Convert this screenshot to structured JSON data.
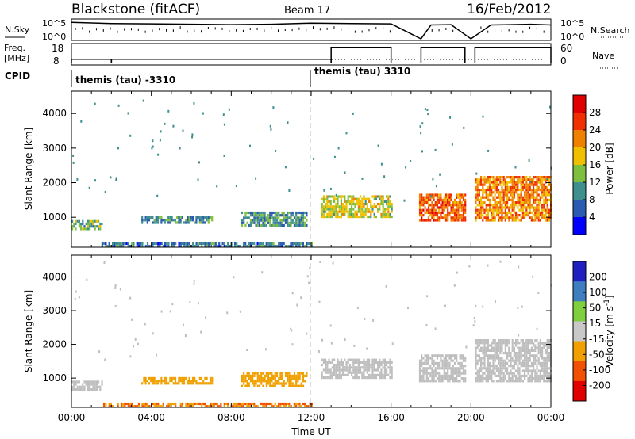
{
  "header": {
    "station": "Blackstone (fitACF)",
    "beam": "Beam 17",
    "date": "16/Feb/2012"
  },
  "top_panels": {
    "nsky_label": "N.Sky",
    "nsearch_label": "N.Search",
    "noise_tick_high": "10^5",
    "noise_tick_low": "10^0",
    "noise_tick_high_right": "10^5",
    "noise_tick_low_right": "10^0",
    "freq_label_top": "Freq.",
    "freq_label_bottom": "[MHz]",
    "freq_tick_high": "18",
    "freq_tick_low": "8",
    "nave_label": "Nave",
    "nave_tick_high": "60",
    "nave_tick_low": "0",
    "cpid_label": "CPID",
    "cpid_segments": [
      "themis (tau) -3310",
      "themis (tau) 3310"
    ]
  },
  "colors": {
    "power_scale": [
      "#0000ff",
      "#2a5bb0",
      "#3f8f8f",
      "#7fbf3f",
      "#f0c000",
      "#f08000",
      "#f03000",
      "#e00000"
    ],
    "velocity_scale": [
      "#e00000",
      "#f05000",
      "#f0a000",
      "#c8c8c8",
      "#7fcf3f",
      "#3f7fbf",
      "#2020c0"
    ],
    "ground_scatter": "#bebebe"
  },
  "chart_data": [
    {
      "type": "line",
      "title": "N.Sky / N.Search",
      "x": [
        0,
        2,
        4,
        6,
        8,
        10,
        12,
        14,
        16,
        17.5,
        18,
        19,
        20,
        21,
        22,
        23,
        24
      ],
      "series": [
        {
          "name": "N.Sky",
          "values": [
            4.5,
            4.2,
            4.1,
            4.0,
            3.9,
            4.0,
            4.3,
            4.2,
            4.1,
            0.0,
            3.8,
            3.9,
            0.0,
            3.8,
            3.9,
            4.0,
            3.8
          ]
        }
      ],
      "ylim": [
        0,
        5
      ],
      "xlim": [
        0,
        24
      ]
    },
    {
      "type": "line",
      "title": "Freq. / Nave",
      "x": [
        0,
        1.99,
        2,
        12.99,
        13,
        16,
        17.5,
        20,
        24
      ],
      "series": [
        {
          "name": "Freq.",
          "values": [
            10.3,
            10.3,
            10.3,
            10.3,
            16.8,
            16.8,
            16.8,
            16.8,
            16.8
          ]
        }
      ],
      "ylim": [
        8,
        18
      ],
      "xlim": [
        0,
        24
      ]
    },
    {
      "type": "heatmap",
      "xlabel": "",
      "ylabel": "Slant Range [km]",
      "colorbar_label": "Power [dB]",
      "colorbar_ticks": [
        4,
        8,
        12,
        16,
        20,
        24,
        28
      ],
      "xlim": [
        0,
        24
      ],
      "ylim": [
        180,
        4600
      ],
      "yticks": [
        1000,
        2000,
        3000,
        4000
      ],
      "regions": [
        {
          "t0": 0.0,
          "t1": 1.5,
          "r0": 700,
          "r1": 950,
          "value": 12
        },
        {
          "t0": 3.5,
          "t1": 7.0,
          "r0": 880,
          "r1": 1050,
          "value": 10
        },
        {
          "t0": 8.5,
          "t1": 11.8,
          "r0": 800,
          "r1": 1200,
          "value": 10
        },
        {
          "t0": 12.5,
          "t1": 16.0,
          "r0": 1050,
          "r1": 1650,
          "value": 16
        },
        {
          "t0": 17.4,
          "t1": 19.7,
          "r0": 950,
          "r1": 1750,
          "value": 24
        },
        {
          "t0": 20.2,
          "t1": 24.0,
          "r0": 950,
          "r1": 2200,
          "value": 22
        },
        {
          "t0": 1.5,
          "t1": 12.0,
          "r0": 200,
          "r1": 320,
          "value": 8
        }
      ]
    },
    {
      "type": "heatmap",
      "xlabel": "Time UT",
      "ylabel": "Slant Range [km]",
      "colorbar_label": "Velocity [m s^-1]",
      "colorbar_ticks": [
        200,
        100,
        50,
        15,
        -15,
        -50,
        -100,
        -200
      ],
      "xlim": [
        0,
        24
      ],
      "ylim": [
        180,
        4600
      ],
      "yticks": [
        1000,
        2000,
        3000,
        4000
      ],
      "xticks": [
        "00:00",
        "04:00",
        "08:00",
        "12:00",
        "16:00",
        "20:00",
        "00:00"
      ],
      "regions": [
        {
          "t0": 0.0,
          "t1": 1.5,
          "r0": 700,
          "r1": 950,
          "value": 0
        },
        {
          "t0": 3.5,
          "t1": 7.0,
          "r0": 880,
          "r1": 1050,
          "value": -60
        },
        {
          "t0": 8.5,
          "t1": 11.8,
          "r0": 800,
          "r1": 1200,
          "value": -60
        },
        {
          "t0": 12.5,
          "t1": 16.0,
          "r0": 1050,
          "r1": 1650,
          "value": 0
        },
        {
          "t0": 17.4,
          "t1": 19.7,
          "r0": 950,
          "r1": 1750,
          "value": 0
        },
        {
          "t0": 20.2,
          "t1": 24.0,
          "r0": 950,
          "r1": 2200,
          "value": 0
        },
        {
          "t0": 1.5,
          "t1": 12.0,
          "r0": 200,
          "r1": 320,
          "value": -30
        }
      ]
    }
  ],
  "power_colorbar": {
    "label": "Power [dB]",
    "ticks": [
      "28",
      "24",
      "20",
      "16",
      "12",
      "8",
      "4"
    ]
  },
  "velocity_colorbar": {
    "label": "Velocity [m s",
    "label_sup": "-1",
    "label_end": "]",
    "ticks": [
      "200",
      "100",
      "50",
      "15",
      "-15",
      "-50",
      "-100",
      "-200"
    ]
  },
  "axes": {
    "ylabel": "Slant Range [km]",
    "xlabel": "Time UT",
    "yticks": [
      "4000",
      "3000",
      "2000",
      "1000"
    ],
    "xticks": [
      "00:00",
      "04:00",
      "08:00",
      "12:00",
      "16:00",
      "20:00",
      "00:00"
    ]
  }
}
